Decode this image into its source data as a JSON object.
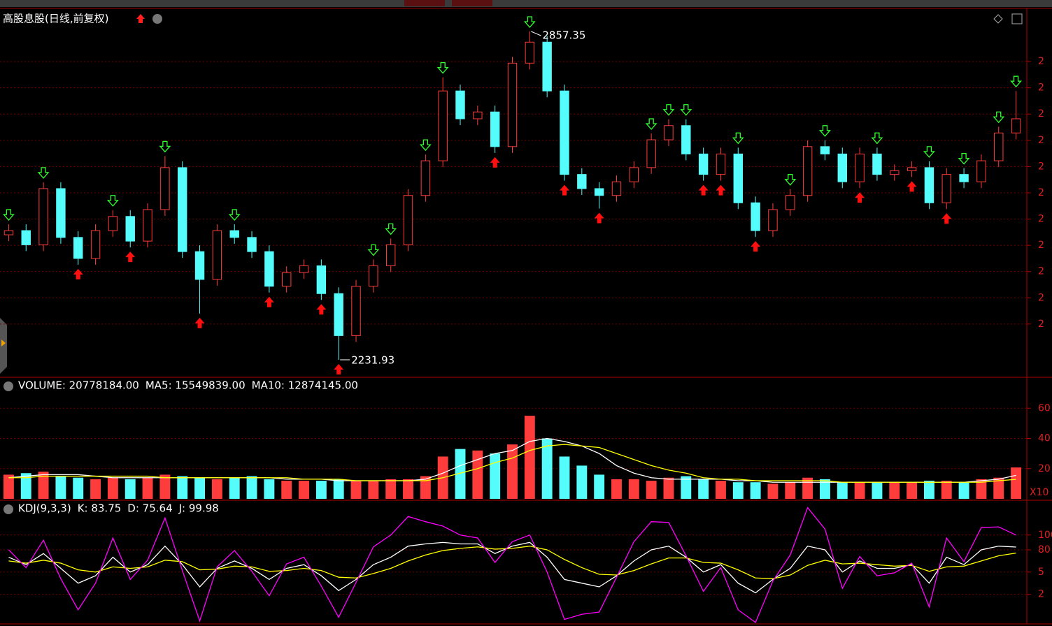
{
  "chart_data": [
    {
      "type": "candlestick",
      "title": "高股息股(日线,前复权)",
      "open": [
        2470,
        2478,
        2451,
        2558,
        2465,
        2425,
        2478,
        2505,
        2458,
        2518,
        2598,
        2438,
        2385,
        2478,
        2465,
        2438,
        2372,
        2398,
        2411,
        2358,
        2278,
        2372,
        2411,
        2451,
        2545,
        2611,
        2744,
        2691,
        2704,
        2638,
        2797,
        2837,
        2744,
        2585,
        2558,
        2545,
        2571,
        2598,
        2651,
        2678,
        2624,
        2585,
        2624,
        2531,
        2478,
        2518,
        2545,
        2638,
        2624,
        2571,
        2624,
        2585,
        2592,
        2598,
        2531,
        2585,
        2571,
        2611,
        2664
      ],
      "high": [
        2490,
        2490,
        2570,
        2570,
        2477,
        2490,
        2517,
        2517,
        2530,
        2620,
        2610,
        2450,
        2490,
        2490,
        2477,
        2450,
        2410,
        2423,
        2423,
        2370,
        2384,
        2423,
        2463,
        2557,
        2623,
        2770,
        2756,
        2716,
        2716,
        2809,
        2857.35,
        2849,
        2756,
        2597,
        2570,
        2583,
        2610,
        2663,
        2690,
        2690,
        2636,
        2636,
        2636,
        2543,
        2530,
        2557,
        2650,
        2650,
        2636,
        2636,
        2636,
        2604,
        2610,
        2610,
        2597,
        2597,
        2623,
        2676,
        2744
      ],
      "low": [
        2458,
        2439,
        2439,
        2453,
        2413,
        2413,
        2466,
        2446,
        2446,
        2506,
        2426,
        2320,
        2373,
        2453,
        2426,
        2360,
        2360,
        2386,
        2346,
        2231.93,
        2266,
        2360,
        2399,
        2439,
        2533,
        2599,
        2679,
        2679,
        2626,
        2626,
        2785,
        2732,
        2573,
        2546,
        2520,
        2533,
        2559,
        2586,
        2639,
        2612,
        2573,
        2573,
        2519,
        2466,
        2466,
        2506,
        2533,
        2612,
        2559,
        2559,
        2573,
        2573,
        2580,
        2519,
        2519,
        2559,
        2559,
        2599,
        2652
      ],
      "close": [
        2478,
        2451,
        2558,
        2465,
        2425,
        2478,
        2505,
        2458,
        2518,
        2598,
        2438,
        2385,
        2478,
        2465,
        2438,
        2372,
        2398,
        2411,
        2358,
        2278,
        2372,
        2411,
        2451,
        2545,
        2611,
        2744,
        2691,
        2704,
        2638,
        2797,
        2837,
        2744,
        2585,
        2558,
        2545,
        2571,
        2598,
        2651,
        2678,
        2624,
        2585,
        2624,
        2531,
        2478,
        2518,
        2545,
        2638,
        2624,
        2571,
        2624,
        2585,
        2592,
        2598,
        2531,
        2585,
        2571,
        2611,
        2664,
        2691
      ],
      "up_color": "#ff3c3c",
      "down_color": "#54fcfc",
      "buy_signals": [
        4,
        7,
        11,
        15,
        18,
        19,
        28,
        32,
        34,
        40,
        41,
        43,
        49,
        52,
        54
      ],
      "buy_color": "#ff1010",
      "sell_signals": [
        0,
        2,
        6,
        9,
        13,
        21,
        22,
        24,
        25,
        30,
        37,
        38,
        39,
        42,
        45,
        47,
        50,
        53,
        55,
        57,
        58
      ],
      "sell_color": "#30ff30",
      "ylim": [
        2201.3,
        2898.6
      ],
      "yticks": [
        {
          "value": 2300,
          "label": "2"
        },
        {
          "value": 2350,
          "label": "2"
        },
        {
          "value": 2400,
          "label": "2"
        },
        {
          "value": 2450,
          "label": "2"
        },
        {
          "value": 2500,
          "label": "2"
        },
        {
          "value": 2550,
          "label": "2"
        },
        {
          "value": 2600,
          "label": "2"
        },
        {
          "value": 2650,
          "label": "2"
        },
        {
          "value": 2700,
          "label": "2"
        },
        {
          "value": 2750,
          "label": "2"
        },
        {
          "value": 2800,
          "label": "2"
        }
      ],
      "grid": true
    },
    {
      "type": "bar",
      "legend": [
        "VOLUME: 20778184.00",
        "MA5: 15549839.00",
        "MA10: 12874145.00"
      ],
      "legend_colors": [
        "#ffffff",
        "#ffffff",
        "#ffff00"
      ],
      "values": [
        16,
        17,
        18,
        15,
        14,
        13,
        14,
        13,
        14,
        16,
        15,
        14,
        13,
        14,
        15,
        13,
        12,
        12,
        12,
        13,
        12,
        12,
        13,
        13,
        15,
        28,
        33,
        32,
        30,
        36,
        55,
        40,
        28,
        22,
        16,
        13,
        13,
        12,
        14,
        15,
        13,
        12,
        11,
        11,
        10,
        11,
        14,
        13,
        11,
        11,
        11,
        11,
        11,
        12,
        12,
        11,
        13,
        14,
        20.778184
      ],
      "ma5": [
        14,
        15,
        16,
        16,
        16,
        15,
        14,
        14,
        14,
        14,
        14,
        14,
        14,
        14,
        14,
        14,
        13,
        13,
        13,
        12,
        12,
        12,
        12,
        12,
        13,
        17,
        22,
        26,
        30,
        32,
        38,
        40,
        38,
        35,
        30,
        22,
        17,
        14,
        13,
        13,
        13,
        13,
        12,
        12,
        11,
        11,
        11,
        11,
        11,
        11,
        11,
        11,
        11,
        11,
        11,
        11,
        12,
        13,
        15.549839
      ],
      "ma10": [
        14,
        14,
        15,
        15,
        15,
        15,
        15,
        15,
        15,
        14,
        14,
        14,
        14,
        14,
        14,
        14,
        14,
        13,
        13,
        13,
        12,
        12,
        12,
        12,
        12,
        14,
        17,
        20,
        24,
        27,
        32,
        35,
        36,
        35,
        34,
        30,
        26,
        22,
        19,
        17,
        14,
        13,
        13,
        12,
        12,
        12,
        12,
        12,
        11,
        11,
        11,
        11,
        11,
        11,
        11,
        11,
        11,
        12,
        12.874145
      ],
      "ma5_color": "#ffffff",
      "ma10_color": "#ffff00",
      "unit_label": "X10",
      "ylim": [
        0,
        80
      ],
      "yticks": [
        20,
        40,
        60
      ],
      "grid": true
    },
    {
      "type": "line",
      "title": "KDJ(9,3,3)",
      "series": [
        {
          "name": "K: 83.75",
          "color": "#ffffff",
          "values": [
            70,
            60,
            75,
            55,
            35,
            45,
            70,
            50,
            60,
            85,
            60,
            30,
            55,
            65,
            55,
            40,
            55,
            60,
            45,
            25,
            40,
            60,
            70,
            85,
            88,
            90,
            88,
            88,
            75,
            85,
            90,
            70,
            40,
            35,
            30,
            45,
            65,
            80,
            85,
            70,
            50,
            60,
            35,
            22,
            40,
            55,
            85,
            80,
            50,
            65,
            55,
            55,
            60,
            35,
            70,
            60,
            80,
            85,
            83.75
          ]
        },
        {
          "name": "D: 75.64",
          "color": "#ffff00",
          "values": [
            65,
            62,
            66,
            62,
            53,
            50,
            57,
            55,
            57,
            66,
            64,
            53,
            54,
            58,
            57,
            51,
            52,
            55,
            52,
            43,
            42,
            48,
            55,
            65,
            73,
            79,
            82,
            84,
            81,
            82,
            85,
            80,
            67,
            56,
            47,
            46,
            52,
            61,
            69,
            69,
            63,
            62,
            53,
            42,
            41,
            46,
            59,
            66,
            61,
            62,
            60,
            58,
            59,
            51,
            57,
            58,
            65,
            72,
            75.64
          ]
        },
        {
          "name": "J: 99.98",
          "color": "#ff00ff",
          "values": [
            80,
            56,
            93,
            41,
            -1,
            35,
            96,
            40,
            66,
            123,
            52,
            -16,
            57,
            79,
            51,
            18,
            61,
            70,
            31,
            -11,
            36,
            84,
            100,
            125,
            118,
            112,
            100,
            96,
            63,
            91,
            100,
            50,
            -14,
            -7,
            -4,
            43,
            91,
            118,
            117,
            72,
            24,
            56,
            -1,
            -18,
            38,
            73,
            137,
            108,
            28,
            71,
            45,
            49,
            62,
            3,
            96,
            64,
            110,
            111,
            99.98
          ]
        }
      ],
      "ylim": [
        -20,
        146
      ],
      "yticks": [
        {
          "value": 20,
          "label": "2"
        },
        {
          "value": 50,
          "label": "5"
        },
        80,
        100
      ],
      "grid": true
    }
  ]
}
